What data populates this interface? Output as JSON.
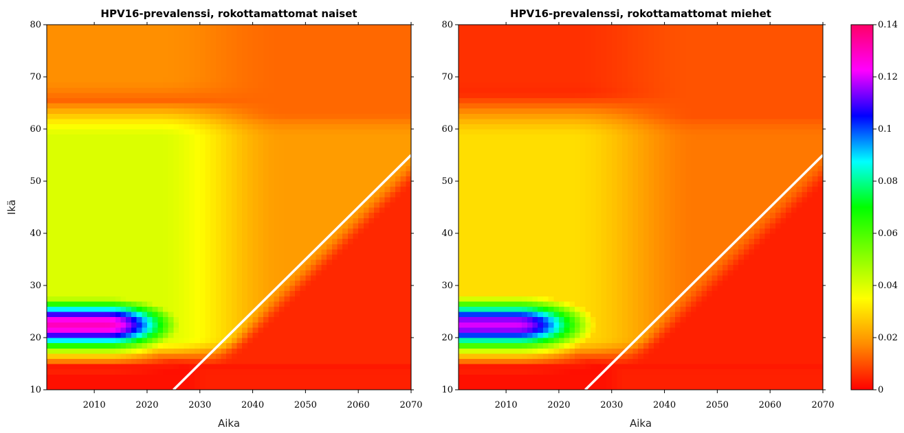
{
  "chart_data": [
    {
      "type": "heatmap",
      "title": "HPV16-prevalenssi, rokottamattomat naiset",
      "xlabel": "Aika",
      "ylabel": "Ikä",
      "xlim": [
        2001,
        2070
      ],
      "ylim": [
        10,
        80
      ],
      "xticks": [
        2010,
        2020,
        2030,
        2040,
        2050,
        2060,
        2070
      ],
      "yticks": [
        10,
        20,
        30,
        40,
        50,
        60,
        70,
        80
      ],
      "value_range": [
        0,
        0.14
      ],
      "reference_line": {
        "x": [
          2025,
          2070
        ],
        "y": [
          10,
          55
        ],
        "color": "#ffffff"
      },
      "approx_values": {
        "peak_ages_18_26_before_2020": 0.13,
        "ages_30_60_before_2030": 0.04,
        "ages_65_80": 0.018,
        "below_line_after_2045": 0.005,
        "ages_10_14": 0.002
      }
    },
    {
      "type": "heatmap",
      "title": "HPV16-prevalenssi, rokottamattomat miehet",
      "xlabel": "Aika",
      "ylabel": "",
      "xlim": [
        2001,
        2070
      ],
      "ylim": [
        10,
        80
      ],
      "xticks": [
        2010,
        2020,
        2030,
        2040,
        2050,
        2060,
        2070
      ],
      "yticks": [
        10,
        20,
        30,
        40,
        50,
        60,
        70,
        80
      ],
      "value_range": [
        0,
        0.14
      ],
      "reference_line": {
        "x": [
          2025,
          2070
        ],
        "y": [
          10,
          55
        ],
        "color": "#ffffff"
      },
      "approx_values": {
        "peak_ages_18_26_before_2020": 0.12,
        "ages_30_60_before_2030": 0.03,
        "ages_65_80": 0.006,
        "below_line_after_2045": 0.004,
        "ages_10_14": 0.002
      }
    }
  ],
  "colorbar": {
    "ticks": [
      0,
      0.02,
      0.04,
      0.06,
      0.08,
      0.1,
      0.12,
      0.14
    ],
    "tick_labels": [
      "0",
      "0.02",
      "0.04",
      "0.06",
      "0.08",
      "0.1",
      "0.12",
      "0.14"
    ],
    "stops": [
      "#ff0000",
      "#ff8c00",
      "#ffff00",
      "#80ff00",
      "#00ff00",
      "#00ffff",
      "#0000ff",
      "#ff00ff",
      "#ff0066"
    ]
  }
}
